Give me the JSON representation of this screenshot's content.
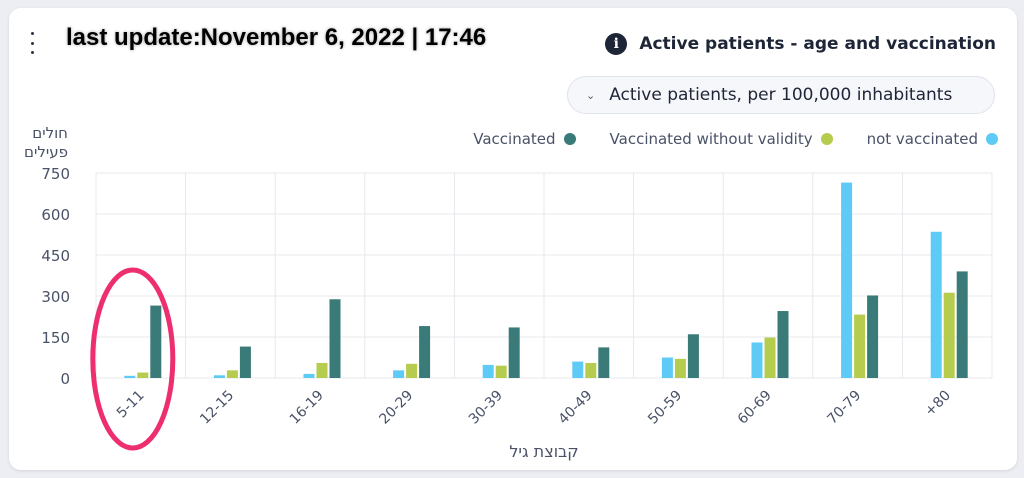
{
  "header": {
    "last_update": "last update:November 6, 2022 | 17:46",
    "title": "Active patients - age and vaccination",
    "info_icon": "info-icon",
    "menu_icon": "kebab-menu-icon"
  },
  "dropdown": {
    "selected": "Active patients, per 100,000 inhabitants",
    "icon": "chevron-down-icon"
  },
  "colors": {
    "not_vaccinated": "#5ecbf6",
    "vaccinated_without_validity": "#b5cc4e",
    "vaccinated": "#3a7a78",
    "highlight_circle": "#ee2f6f"
  },
  "chart_data": {
    "type": "bar",
    "ylabel_line1": "חולים",
    "ylabel_line2": "פעילים",
    "xlabel": "קבוצת גיל",
    "categories": [
      "5-11",
      "12-15",
      "16-19",
      "20-29",
      "30-39",
      "40-49",
      "50-59",
      "60-69",
      "70-79",
      "+80"
    ],
    "yticks": [
      "0",
      "150",
      "300",
      "450",
      "600",
      "750"
    ],
    "ylim": [
      0,
      750
    ],
    "grid": true,
    "legend_position": "top-right",
    "highlighted_category": "5-11",
    "series": [
      {
        "name": "not vaccinated",
        "color": "#5ecbf6",
        "values": [
          8,
          10,
          15,
          28,
          48,
          60,
          75,
          130,
          715,
          535
        ]
      },
      {
        "name": "Vaccinated without validity",
        "color": "#b5cc4e",
        "values": [
          20,
          28,
          55,
          52,
          45,
          55,
          70,
          148,
          232,
          312
        ]
      },
      {
        "name": "Vaccinated",
        "color": "#3a7a78",
        "values": [
          265,
          115,
          288,
          190,
          185,
          112,
          160,
          245,
          302,
          390
        ]
      }
    ]
  }
}
